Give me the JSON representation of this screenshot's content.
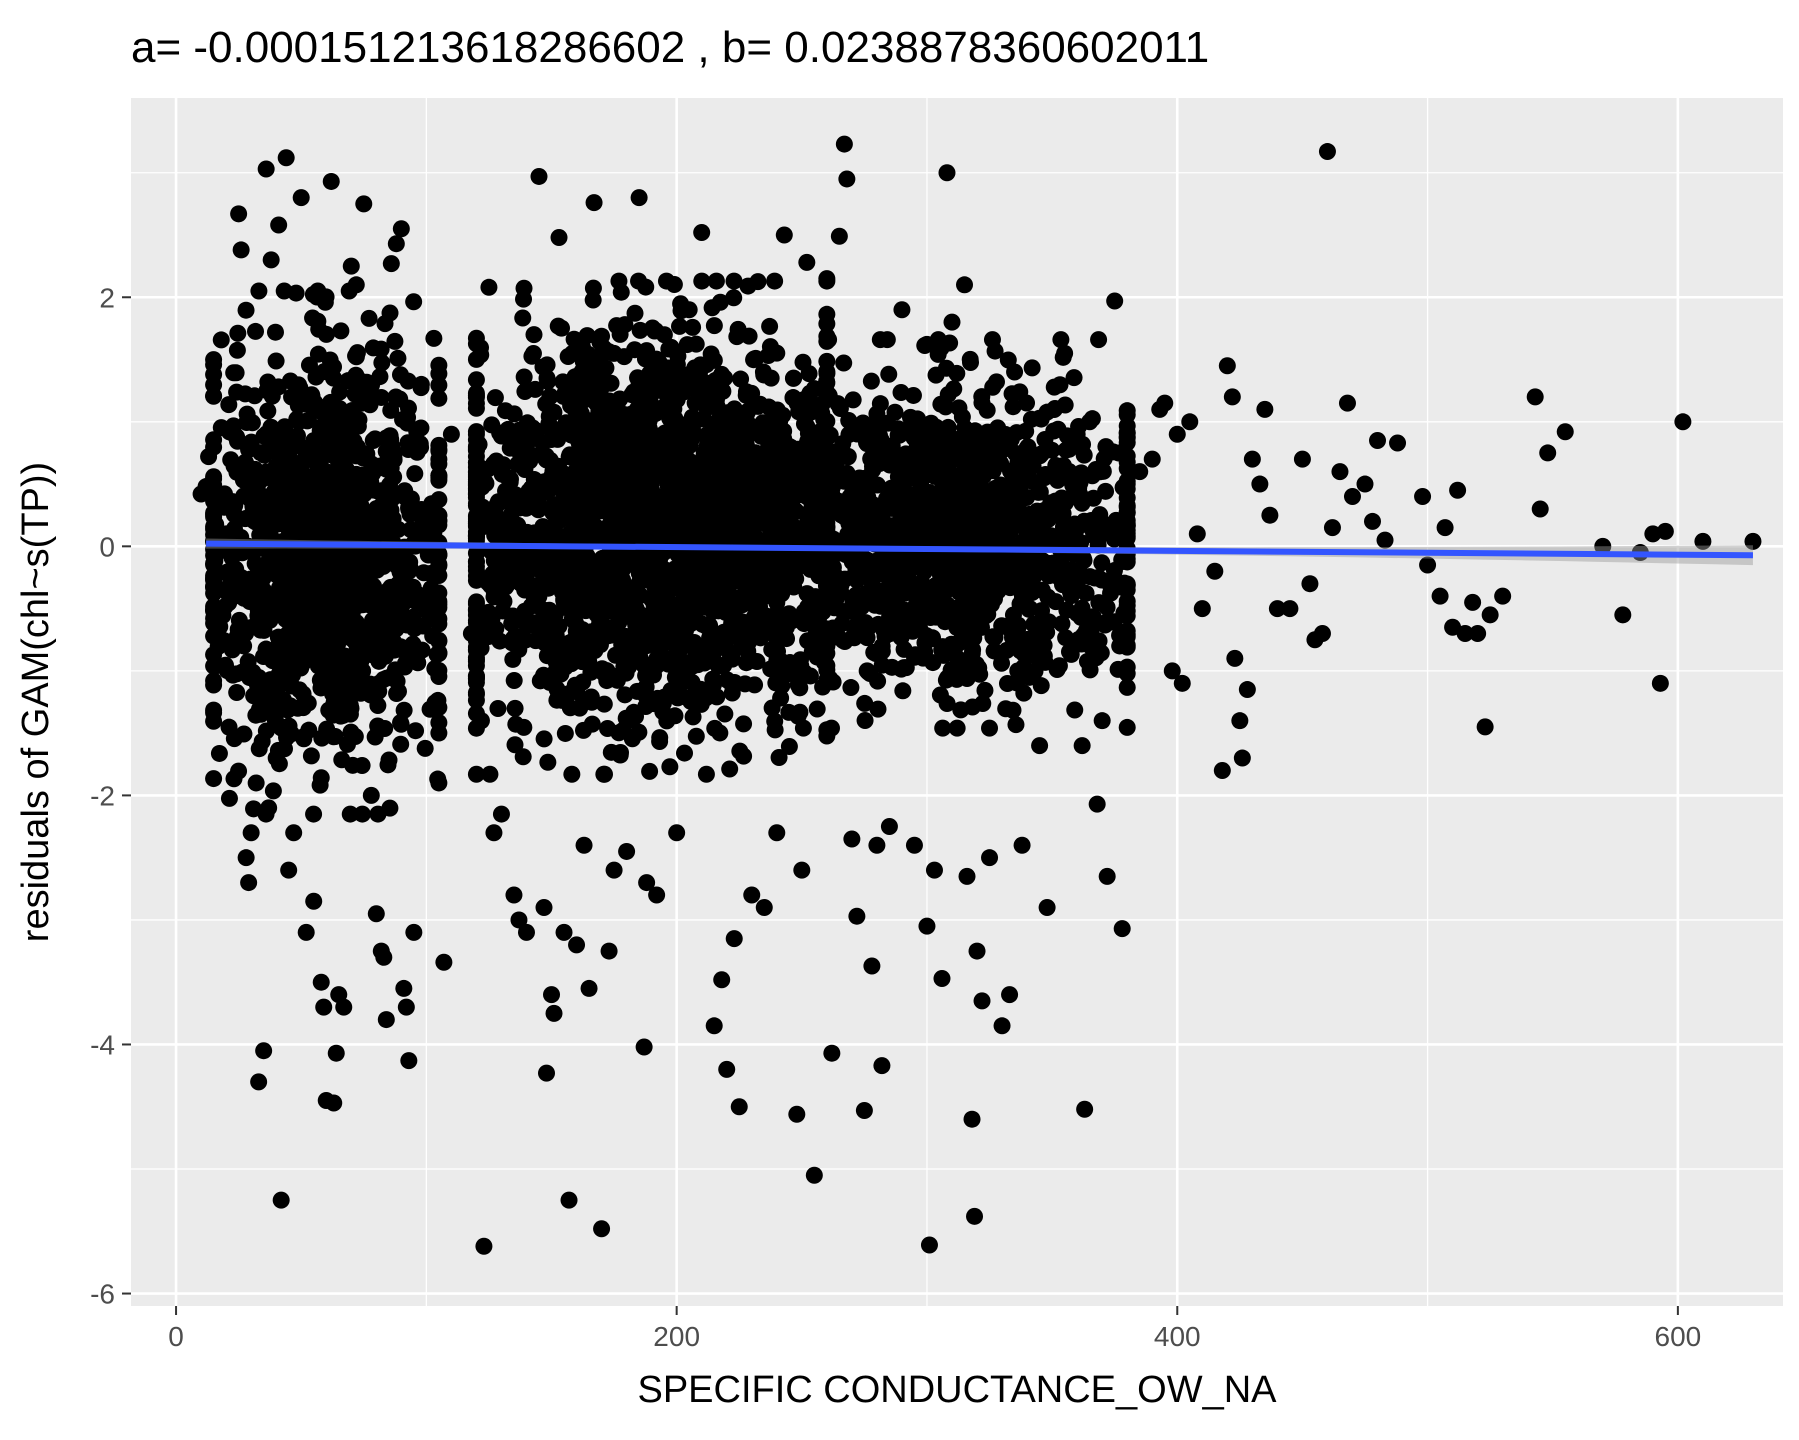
{
  "chart_data": {
    "type": "scatter",
    "title": "a= -0.000151213618286602 , b= 0.0238878360602011",
    "xlabel": "SPECIFIC CONDUCTANCE_OW_NA",
    "ylabel": "residuals of GAM(chl~s(TP))",
    "xlim": [
      -18,
      642
    ],
    "ylim": [
      -6.1,
      3.6
    ],
    "x_ticks": [
      0,
      200,
      400,
      600
    ],
    "x_tick_labels": [
      "0",
      "200",
      "400",
      "600"
    ],
    "y_ticks": [
      -6,
      -4,
      -2,
      0,
      2
    ],
    "y_tick_labels": [
      "-6",
      "-4",
      "-2",
      "0",
      "2"
    ],
    "grid": true,
    "legend": "none",
    "fit_line": {
      "intercept": 0.0238878360602011,
      "slope": -0.000151213618286602,
      "x_range": [
        12,
        630
      ],
      "color": "#3355ff",
      "ci_color": "#999999"
    },
    "series": [
      {
        "marker_color": "#000000",
        "clusters": [
          {
            "x_range": [
              15,
              105
            ],
            "y_range": [
              -1.8,
              1.7
            ],
            "count": 1300
          },
          {
            "x_range": [
              120,
              260
            ],
            "y_range": [
              -1.5,
              1.8
            ],
            "count": 2200
          },
          {
            "x_range": [
              240,
              380
            ],
            "y_range": [
              -1.2,
              1.4
            ],
            "count": 1300
          }
        ],
        "points": [
          [
            10,
            0.42
          ],
          [
            12,
            0.48
          ],
          [
            13,
            0.72
          ],
          [
            20,
            0.1
          ],
          [
            22,
            -0.2
          ],
          [
            25,
            2.67
          ],
          [
            26,
            2.38
          ],
          [
            27,
            -0.8
          ],
          [
            28,
            -2.5
          ],
          [
            29,
            -2.7
          ],
          [
            30,
            -2.3
          ],
          [
            31,
            -1.2
          ],
          [
            32,
            -1.9
          ],
          [
            33,
            -4.3
          ],
          [
            35,
            -4.05
          ],
          [
            36,
            3.03
          ],
          [
            37,
            -2.1
          ],
          [
            38,
            2.3
          ],
          [
            40,
            -1.7
          ],
          [
            41,
            2.58
          ],
          [
            42,
            -5.25
          ],
          [
            44,
            3.12
          ],
          [
            45,
            -2.6
          ],
          [
            47,
            -2.3
          ],
          [
            50,
            2.8
          ],
          [
            52,
            -3.1
          ],
          [
            55,
            -2.85
          ],
          [
            58,
            -3.5
          ],
          [
            59,
            -3.7
          ],
          [
            60,
            -4.45
          ],
          [
            62,
            2.93
          ],
          [
            63,
            -4.47
          ],
          [
            64,
            -4.07
          ],
          [
            65,
            -3.6
          ],
          [
            67,
            -3.7
          ],
          [
            70,
            2.25
          ],
          [
            72,
            2.1
          ],
          [
            75,
            2.75
          ],
          [
            78,
            -2.0
          ],
          [
            80,
            -2.95
          ],
          [
            82,
            -3.25
          ],
          [
            83,
            -3.3
          ],
          [
            84,
            -3.8
          ],
          [
            86,
            2.27
          ],
          [
            88,
            2.43
          ],
          [
            90,
            2.55
          ],
          [
            91,
            -3.55
          ],
          [
            92,
            -3.7
          ],
          [
            93,
            -4.13
          ],
          [
            95,
            -3.1
          ],
          [
            98,
            1.3
          ],
          [
            103,
            1.67
          ],
          [
            105,
            -1.9
          ],
          [
            107,
            -3.34
          ],
          [
            110,
            0.9
          ],
          [
            118,
            -0.7
          ],
          [
            122,
            -1.4
          ],
          [
            123,
            -5.62
          ],
          [
            125,
            2.08
          ],
          [
            127,
            -2.3
          ],
          [
            130,
            -2.15
          ],
          [
            135,
            -2.8
          ],
          [
            137,
            -3.0
          ],
          [
            140,
            -3.1
          ],
          [
            143,
            1.7
          ],
          [
            145,
            2.97
          ],
          [
            147,
            -2.9
          ],
          [
            148,
            -4.23
          ],
          [
            150,
            -3.6
          ],
          [
            151,
            -3.75
          ],
          [
            153,
            2.48
          ],
          [
            155,
            -3.1
          ],
          [
            157,
            -5.25
          ],
          [
            160,
            -3.2
          ],
          [
            163,
            -2.4
          ],
          [
            165,
            -3.55
          ],
          [
            167,
            2.76
          ],
          [
            170,
            -5.48
          ],
          [
            173,
            -3.25
          ],
          [
            175,
            -2.6
          ],
          [
            177,
            1.75
          ],
          [
            180,
            -2.45
          ],
          [
            185,
            2.8
          ],
          [
            187,
            -4.02
          ],
          [
            188,
            -2.7
          ],
          [
            192,
            -2.8
          ],
          [
            200,
            -2.3
          ],
          [
            205,
            1.9
          ],
          [
            210,
            2.52
          ],
          [
            215,
            -3.85
          ],
          [
            218,
            -3.48
          ],
          [
            220,
            -4.2
          ],
          [
            223,
            -3.15
          ],
          [
            225,
            -4.5
          ],
          [
            230,
            -2.8
          ],
          [
            235,
            -2.9
          ],
          [
            240,
            -2.3
          ],
          [
            243,
            2.5
          ],
          [
            248,
            -4.56
          ],
          [
            250,
            -2.6
          ],
          [
            252,
            2.28
          ],
          [
            255,
            -5.05
          ],
          [
            260,
            2.15
          ],
          [
            262,
            -4.07
          ],
          [
            265,
            2.49
          ],
          [
            267,
            3.23
          ],
          [
            268,
            2.95
          ],
          [
            270,
            -2.35
          ],
          [
            272,
            -2.97
          ],
          [
            275,
            -4.53
          ],
          [
            278,
            -3.37
          ],
          [
            280,
            -2.4
          ],
          [
            282,
            -4.17
          ],
          [
            285,
            -2.25
          ],
          [
            290,
            1.9
          ],
          [
            295,
            -2.4
          ],
          [
            300,
            -3.05
          ],
          [
            301,
            -5.61
          ],
          [
            303,
            -2.6
          ],
          [
            306,
            -3.47
          ],
          [
            308,
            3.0
          ],
          [
            310,
            1.8
          ],
          [
            315,
            2.1
          ],
          [
            316,
            -2.65
          ],
          [
            318,
            -4.6
          ],
          [
            319,
            -5.38
          ],
          [
            320,
            -3.25
          ],
          [
            322,
            -3.65
          ],
          [
            325,
            -2.5
          ],
          [
            330,
            -3.85
          ],
          [
            333,
            -3.6
          ],
          [
            335,
            1.4
          ],
          [
            338,
            -2.4
          ],
          [
            345,
            -1.6
          ],
          [
            348,
            -2.9
          ],
          [
            355,
            1.55
          ],
          [
            360,
            0.9
          ],
          [
            362,
            -1.6
          ],
          [
            363,
            -4.52
          ],
          [
            365,
            1.0
          ],
          [
            368,
            -2.07
          ],
          [
            370,
            -1.4
          ],
          [
            372,
            -2.65
          ],
          [
            375,
            1.97
          ],
          [
            377,
            -0.8
          ],
          [
            378,
            -3.07
          ],
          [
            380,
            0.5
          ],
          [
            385,
            0.6
          ],
          [
            390,
            0.7
          ],
          [
            393,
            1.1
          ],
          [
            395,
            1.15
          ],
          [
            398,
            -1.0
          ],
          [
            400,
            0.9
          ],
          [
            402,
            -1.1
          ],
          [
            405,
            1.0
          ],
          [
            408,
            0.1
          ],
          [
            410,
            -0.5
          ],
          [
            415,
            -0.2
          ],
          [
            418,
            -1.8
          ],
          [
            420,
            1.45
          ],
          [
            422,
            1.2
          ],
          [
            423,
            -0.9
          ],
          [
            425,
            -1.4
          ],
          [
            426,
            -1.7
          ],
          [
            428,
            -1.15
          ],
          [
            430,
            0.7
          ],
          [
            433,
            0.5
          ],
          [
            435,
            1.1
          ],
          [
            437,
            0.25
          ],
          [
            440,
            -0.5
          ],
          [
            445,
            -0.5
          ],
          [
            450,
            0.7
          ],
          [
            453,
            -0.3
          ],
          [
            455,
            -0.75
          ],
          [
            458,
            -0.7
          ],
          [
            460,
            3.17
          ],
          [
            462,
            0.15
          ],
          [
            465,
            0.6
          ],
          [
            468,
            1.15
          ],
          [
            470,
            0.4
          ],
          [
            475,
            0.5
          ],
          [
            478,
            0.2
          ],
          [
            480,
            0.85
          ],
          [
            483,
            0.05
          ],
          [
            488,
            0.83
          ],
          [
            498,
            0.4
          ],
          [
            500,
            -0.15
          ],
          [
            505,
            -0.4
          ],
          [
            507,
            0.15
          ],
          [
            510,
            -0.65
          ],
          [
            512,
            0.45
          ],
          [
            515,
            -0.7
          ],
          [
            518,
            -0.45
          ],
          [
            520,
            -0.7
          ],
          [
            523,
            -1.45
          ],
          [
            525,
            -0.55
          ],
          [
            530,
            -0.4
          ],
          [
            543,
            1.2
          ],
          [
            545,
            0.3
          ],
          [
            548,
            0.75
          ],
          [
            555,
            0.92
          ],
          [
            570,
            0.0
          ],
          [
            578,
            -0.55
          ],
          [
            585,
            -0.05
          ],
          [
            590,
            0.1
          ],
          [
            593,
            -1.1
          ],
          [
            595,
            0.12
          ],
          [
            602,
            1.0
          ],
          [
            610,
            0.04
          ],
          [
            630,
            0.04
          ]
        ]
      }
    ]
  }
}
